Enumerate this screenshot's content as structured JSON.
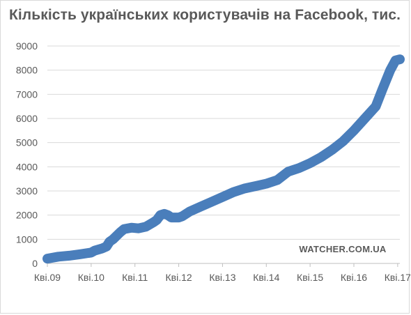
{
  "chart_data": {
    "type": "line",
    "title": "Кількість українських користувачів на Facebook, тис.",
    "xlabel": "",
    "ylabel": "",
    "ylim": [
      0,
      9000
    ],
    "yticks": [
      0,
      1000,
      2000,
      3000,
      4000,
      5000,
      6000,
      7000,
      8000,
      9000
    ],
    "x_tick_labels": [
      "Кві.09",
      "Кві.10",
      "Кві.11",
      "Кві.12",
      "Кві.13",
      "Кві.14",
      "Кві.15",
      "Кві.16",
      "Кві.17"
    ],
    "x_range_years": [
      2009.25,
      2017.3
    ],
    "grid": true,
    "legend": "none",
    "series": [
      {
        "color": "#4a7ebb",
        "points": [
          [
            2009.25,
            200
          ],
          [
            2009.5,
            280
          ],
          [
            2009.75,
            320
          ],
          [
            2010.0,
            380
          ],
          [
            2010.25,
            450
          ],
          [
            2010.33,
            530
          ],
          [
            2010.5,
            620
          ],
          [
            2010.6,
            700
          ],
          [
            2010.67,
            900
          ],
          [
            2010.75,
            1000
          ],
          [
            2010.92,
            1300
          ],
          [
            2011.0,
            1420
          ],
          [
            2011.17,
            1480
          ],
          [
            2011.33,
            1450
          ],
          [
            2011.5,
            1520
          ],
          [
            2011.67,
            1700
          ],
          [
            2011.75,
            1800
          ],
          [
            2011.83,
            2000
          ],
          [
            2011.92,
            2050
          ],
          [
            2012.0,
            2000
          ],
          [
            2012.08,
            1900
          ],
          [
            2012.25,
            1900
          ],
          [
            2012.33,
            1950
          ],
          [
            2012.5,
            2150
          ],
          [
            2012.75,
            2350
          ],
          [
            2013.0,
            2550
          ],
          [
            2013.25,
            2750
          ],
          [
            2013.5,
            2950
          ],
          [
            2013.75,
            3100
          ],
          [
            2014.0,
            3200
          ],
          [
            2014.25,
            3300
          ],
          [
            2014.5,
            3450
          ],
          [
            2014.75,
            3800
          ],
          [
            2015.0,
            3950
          ],
          [
            2015.25,
            4150
          ],
          [
            2015.5,
            4400
          ],
          [
            2015.75,
            4700
          ],
          [
            2016.0,
            5050
          ],
          [
            2016.25,
            5500
          ],
          [
            2016.5,
            6000
          ],
          [
            2016.75,
            6500
          ],
          [
            2016.9,
            7200
          ],
          [
            2017.08,
            8000
          ],
          [
            2017.2,
            8400
          ],
          [
            2017.3,
            8450
          ]
        ]
      }
    ],
    "annotations": [
      "WATCHER.COM.UA"
    ]
  }
}
